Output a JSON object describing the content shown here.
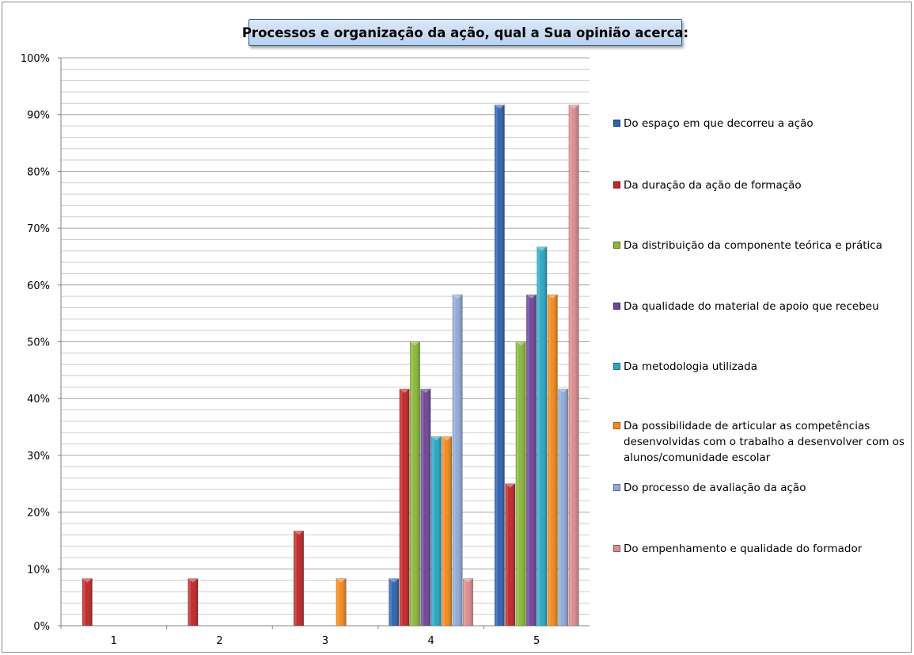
{
  "chart_data": {
    "type": "bar",
    "title": "Processos e organização da ação, qual a Sua opinião acerca:",
    "categories": [
      "1",
      "2",
      "3",
      "4",
      "5"
    ],
    "ylim": [
      0,
      100
    ],
    "yticks": [
      "0%",
      "10%",
      "20%",
      "30%",
      "40%",
      "50%",
      "60%",
      "70%",
      "80%",
      "90%",
      "100%"
    ],
    "grid": true,
    "legend_position": "right",
    "series": [
      {
        "name": "Do espaço em que decorreu a ação",
        "color": "#2f64b0",
        "values": [
          0,
          0,
          0,
          8.3,
          91.7
        ]
      },
      {
        "name": "Da duração da ação de formação",
        "color": "#c0282a",
        "values": [
          8.3,
          8.3,
          16.7,
          41.7,
          25
        ]
      },
      {
        "name": "Da distribuição da componente teórica e prática",
        "color": "#8ab83a",
        "values": [
          0,
          0,
          0,
          50,
          50
        ]
      },
      {
        "name": "Da qualidade do material de apoio que recebeu",
        "color": "#6e4797",
        "values": [
          0,
          0,
          0,
          41.7,
          58.3
        ]
      },
      {
        "name": "Da metodologia utilizada",
        "color": "#2aa8c4",
        "values": [
          0,
          0,
          0,
          33.3,
          66.7
        ]
      },
      {
        "name": "Da possibilidade de articular as competências desenvolvidas com o trabalho a desenvolver com os alunos/comunidade escolar",
        "color": "#f28a1e",
        "values": [
          0,
          0,
          8.3,
          33.3,
          58.3
        ]
      },
      {
        "name": "Do processo de avaliação da ação",
        "color": "#8fabd8",
        "values": [
          0,
          0,
          0,
          58.3,
          41.7
        ]
      },
      {
        "name": "Do empenhamento e qualidade do formador",
        "color": "#de8c8c",
        "values": [
          0,
          0,
          0,
          8.3,
          91.7
        ]
      }
    ]
  }
}
